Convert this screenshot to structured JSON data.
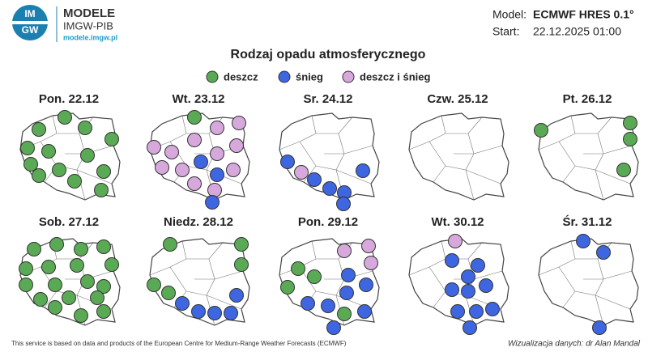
{
  "header": {
    "brand": "MODELE",
    "institute": "IMGW-PIB",
    "url": "modele.imgw.pl",
    "logo_top": "IM",
    "logo_bottom": "GW",
    "model_label": "Model:",
    "model_value": "ECMWF HRES 0.1°",
    "start_label": "Start:",
    "start_value": "22.12.2025 01:00"
  },
  "title": "Rodzaj opadu atmosferycznego",
  "legend": [
    {
      "name": "deszcz",
      "color": "#5aaa55"
    },
    {
      "name": "śnieg",
      "color": "#3e66e0"
    },
    {
      "name": "deszcz i śnieg",
      "color": "#d7a8dc"
    }
  ],
  "panels": [
    {
      "label": "Pon. 22.12"
    },
    {
      "label": "Wt. 23.12"
    },
    {
      "label": "Sr. 24.12"
    },
    {
      "label": "Czw. 25.12"
    },
    {
      "label": "Pt. 26.12"
    },
    {
      "label": "Sob. 27.12"
    },
    {
      "label": "Niedz. 28.12"
    },
    {
      "label": "Pon. 29.12"
    },
    {
      "label": "Wt. 30.12"
    },
    {
      "label": "Śr. 31.12"
    }
  ],
  "footer": {
    "source": "This service is based on data and products of the European Centre for Medium-Range Weather Forecasts (ECMWF)",
    "credit": "Wizualizacja danych: dr Alan Mandal"
  }
}
